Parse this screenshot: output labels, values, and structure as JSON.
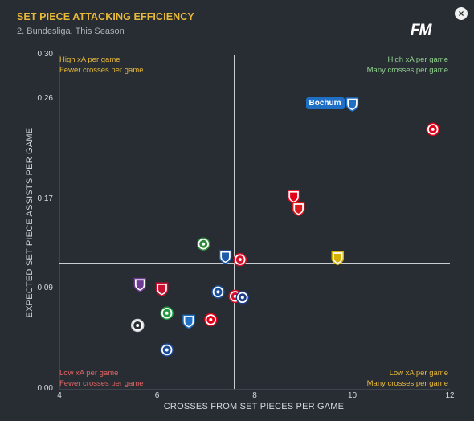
{
  "header": {
    "title": "SET PIECE ATTACKING EFFICIENCY",
    "subtitle": "2. Bundesliga, This Season",
    "logo_text": "FM",
    "close_glyph": "×",
    "close_icon": "close-icon"
  },
  "quadrants": {
    "top_left": {
      "line1": "High xA per game",
      "line2": "Fewer crosses per game",
      "color": "#e8b839"
    },
    "top_right": {
      "line1": "High xA per game",
      "line2": "Many crosses per game",
      "color": "#8fcf8c"
    },
    "bottom_left": {
      "line1": "Low xA per game",
      "line2": "Fewer crosses per game",
      "color": "#e36464"
    },
    "bottom_right": {
      "line1": "Low xA per game",
      "line2": "Many crosses per game",
      "color": "#e8b839"
    }
  },
  "chart_data": {
    "type": "scatter",
    "title": "SET PIECE ATTACKING EFFICIENCY",
    "subtitle": "2. Bundesliga, This Season",
    "xlabel": "CROSSES FROM SET PIECES PER GAME",
    "ylabel": "EXPECTED SET PIECE ASSISTS PER GAME",
    "xlim": [
      4,
      12
    ],
    "ylim": [
      0.0,
      0.3
    ],
    "x_ticks": [
      "4",
      "6",
      "8",
      "10",
      "12"
    ],
    "y_ticks": [
      "0.30",
      "0.26",
      "0.17",
      "0.09",
      "0.00"
    ],
    "y_tick_values": [
      0.3,
      0.26,
      0.17,
      0.09,
      0.0
    ],
    "x_tick_values": [
      4,
      6,
      8,
      10,
      12
    ],
    "average_x": 7.6,
    "average_y": 0.113,
    "grid": false,
    "labelled_point": "Bochum",
    "points": [
      {
        "x": 10.0,
        "y": 0.256,
        "badge": "bochum",
        "color": "#1f6fc4"
      },
      {
        "x": 11.65,
        "y": 0.233,
        "badge": "frankfurt",
        "color": "#e2001a"
      },
      {
        "x": 8.8,
        "y": 0.173,
        "badge": "kaiserslautern",
        "color": "#e2001a"
      },
      {
        "x": 8.9,
        "y": 0.162,
        "badge": "jahn",
        "color": "#d71920"
      },
      {
        "x": 9.7,
        "y": 0.118,
        "badge": "alemannia",
        "color": "#d4b106"
      },
      {
        "x": 6.95,
        "y": 0.13,
        "badge": "hannover",
        "color": "#2e8b3a"
      },
      {
        "x": 7.4,
        "y": 0.119,
        "badge": "darmstadt",
        "color": "#1e5aa8"
      },
      {
        "x": 7.7,
        "y": 0.116,
        "badge": "mainz",
        "color": "#d40f2a"
      },
      {
        "x": 5.65,
        "y": 0.094,
        "badge": "osnabrueck",
        "color": "#6f3a93"
      },
      {
        "x": 6.1,
        "y": 0.09,
        "badge": "heidenheim",
        "color": "#c8102e"
      },
      {
        "x": 7.25,
        "y": 0.087,
        "badge": "kiel",
        "color": "#1b4f9c"
      },
      {
        "x": 7.6,
        "y": 0.083,
        "badge": "sandhausen",
        "color": "#d40f2a"
      },
      {
        "x": 7.75,
        "y": 0.082,
        "badge": "karlsruhe",
        "color": "#1f3c88"
      },
      {
        "x": 6.2,
        "y": 0.068,
        "badge": "fuerth",
        "color": "#1e9a40"
      },
      {
        "x": 6.65,
        "y": 0.061,
        "badge": "magdeburg",
        "color": "#1f6fc4"
      },
      {
        "x": 7.1,
        "y": 0.062,
        "badge": "duesseldorf",
        "color": "#e2001a"
      },
      {
        "x": 5.6,
        "y": 0.057,
        "badge": "elversberg",
        "color": "#cfd2d6"
      },
      {
        "x": 6.2,
        "y": 0.035,
        "badge": "paderborn",
        "color": "#1a4a9c"
      }
    ]
  }
}
